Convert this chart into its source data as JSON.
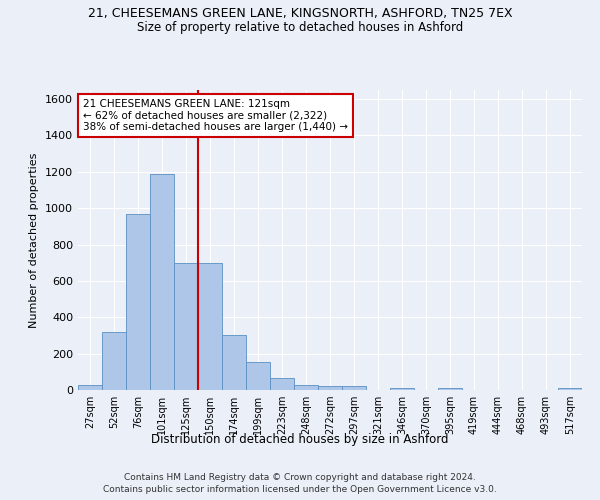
{
  "title_line1": "21, CHEESEMANS GREEN LANE, KINGSNORTH, ASHFORD, TN25 7EX",
  "title_line2": "Size of property relative to detached houses in Ashford",
  "xlabel": "Distribution of detached houses by size in Ashford",
  "ylabel": "Number of detached properties",
  "bar_labels": [
    "27sqm",
    "52sqm",
    "76sqm",
    "101sqm",
    "125sqm",
    "150sqm",
    "174sqm",
    "199sqm",
    "223sqm",
    "248sqm",
    "272sqm",
    "297sqm",
    "321sqm",
    "346sqm",
    "370sqm",
    "395sqm",
    "419sqm",
    "444sqm",
    "468sqm",
    "493sqm",
    "517sqm"
  ],
  "bar_values": [
    30,
    320,
    970,
    1190,
    700,
    700,
    300,
    155,
    65,
    30,
    20,
    20,
    0,
    12,
    0,
    12,
    0,
    0,
    0,
    0,
    12
  ],
  "bar_color": "#aec6e8",
  "bar_edge_color": "#5a8fc2",
  "property_label": "21 CHEESEMANS GREEN LANE: 121sqm",
  "annotation_line2": "← 62% of detached houses are smaller (2,322)",
  "annotation_line3": "38% of semi-detached houses are larger (1,440) →",
  "vline_color": "#cc0000",
  "vline_position": 4.5,
  "ylim": [
    0,
    1650
  ],
  "yticks": [
    0,
    200,
    400,
    600,
    800,
    1000,
    1200,
    1400,
    1600
  ],
  "annotation_box_color": "#cc0000",
  "footer_line1": "Contains HM Land Registry data © Crown copyright and database right 2024.",
  "footer_line2": "Contains public sector information licensed under the Open Government Licence v3.0.",
  "bg_color": "#eaeff8",
  "grid_color": "#ffffff"
}
